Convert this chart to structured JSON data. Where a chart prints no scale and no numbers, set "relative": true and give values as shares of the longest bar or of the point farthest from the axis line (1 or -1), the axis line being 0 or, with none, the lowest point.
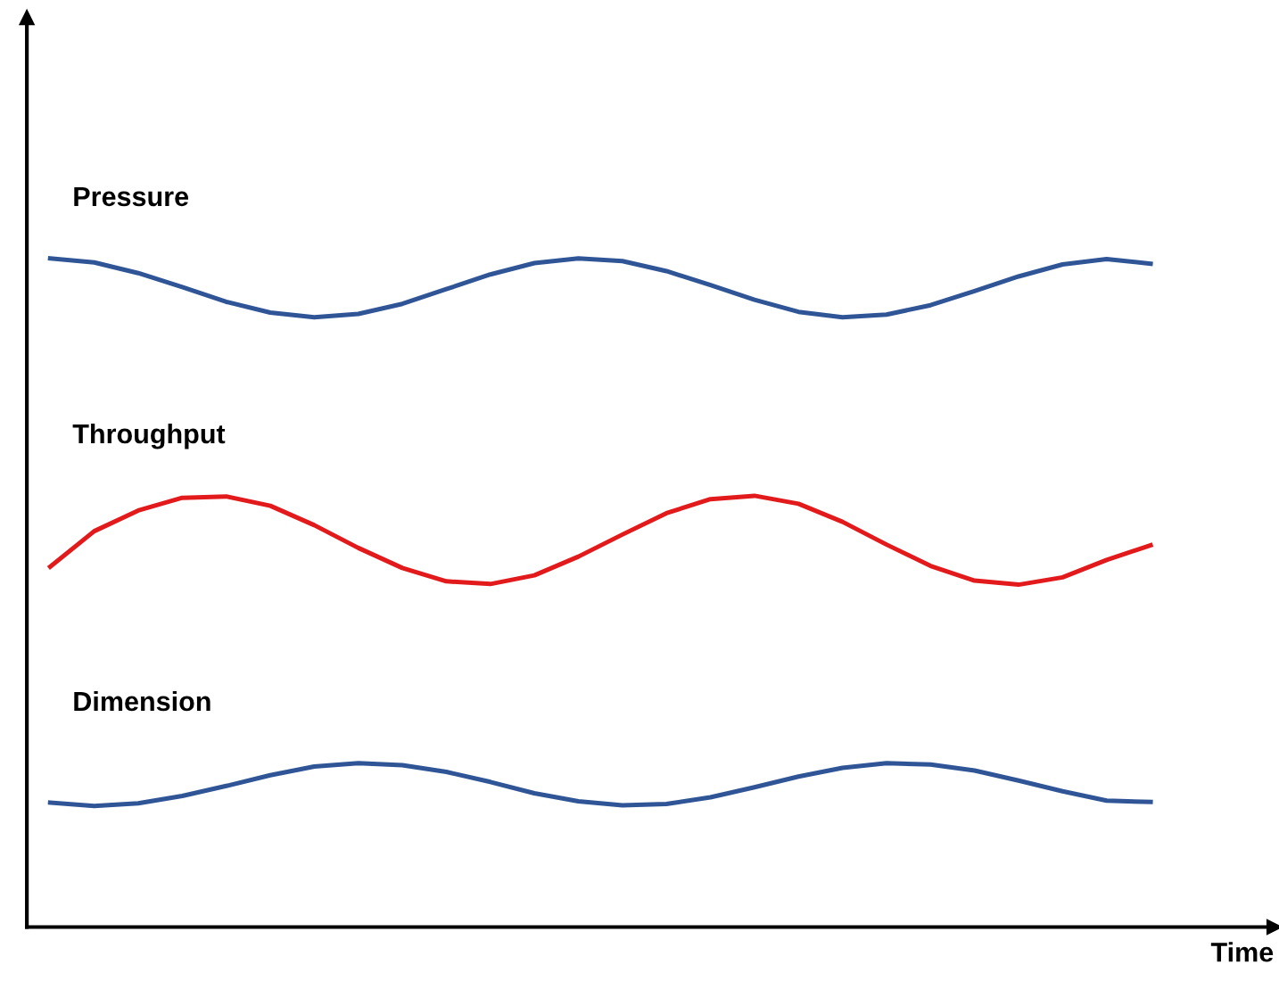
{
  "chart_data": {
    "type": "line",
    "relative": true,
    "xlabel": "Time",
    "legend": false,
    "marker": "none",
    "line_style": "solid",
    "categories": [
      null,
      null,
      null,
      null,
      null,
      null,
      null,
      null,
      null,
      null,
      null,
      null,
      null,
      null,
      null,
      null,
      null,
      null,
      null,
      null,
      null,
      null,
      null,
      null,
      null,
      null
    ],
    "series": [
      {
        "name": "Pressure",
        "color": "#2f5597",
        "values": [
          1.0,
          0.994,
          0.978,
          0.957,
          0.935,
          0.919,
          0.912,
          0.917,
          0.932,
          0.954,
          0.976,
          0.993,
          1.0,
          0.996,
          0.981,
          0.96,
          0.938,
          0.92,
          0.912,
          0.916,
          0.93,
          0.951,
          0.973,
          0.991,
          0.999,
          0.992
        ]
      },
      {
        "name": "Throughput",
        "color": "#e31a1c",
        "values": [
          0.539,
          0.592,
          0.623,
          0.642,
          0.644,
          0.63,
          0.601,
          0.567,
          0.537,
          0.517,
          0.513,
          0.526,
          0.554,
          0.587,
          0.619,
          0.64,
          0.645,
          0.633,
          0.606,
          0.572,
          0.54,
          0.518,
          0.512,
          0.523,
          0.549,
          0.571
        ]
      },
      {
        "name": "Dimension",
        "color": "#2f5597",
        "values": [
          0.186,
          0.181,
          0.185,
          0.196,
          0.211,
          0.227,
          0.24,
          0.245,
          0.242,
          0.232,
          0.217,
          0.2,
          0.188,
          0.182,
          0.184,
          0.194,
          0.209,
          0.225,
          0.238,
          0.245,
          0.243,
          0.234,
          0.219,
          0.203,
          0.189,
          0.187
        ]
      }
    ]
  }
}
